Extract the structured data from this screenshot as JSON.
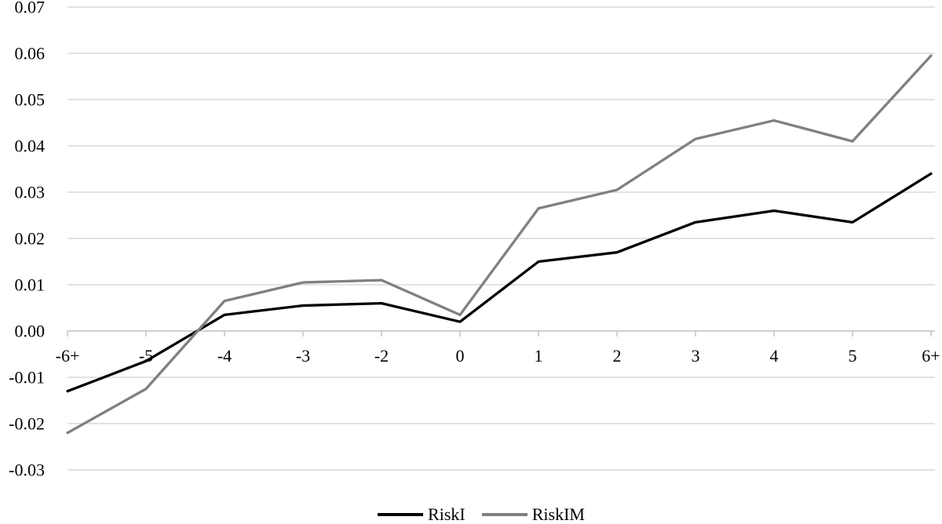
{
  "chart_data": {
    "type": "line",
    "title": "",
    "xlabel": "",
    "ylabel": "",
    "categories": [
      "-6+",
      "-5",
      "-4",
      "-3",
      "-2",
      "0",
      "1",
      "2",
      "3",
      "4",
      "5",
      "6+"
    ],
    "series": [
      {
        "name": "RiskI",
        "color": "#000000",
        "values": [
          -0.013,
          -0.0065,
          0.0035,
          0.0055,
          0.006,
          0.002,
          0.015,
          0.017,
          0.0235,
          0.026,
          0.0235,
          0.034
        ]
      },
      {
        "name": "RiskIM",
        "color": "#808080",
        "values": [
          -0.022,
          -0.0125,
          0.0065,
          0.0105,
          0.011,
          0.0035,
          0.0265,
          0.0305,
          0.0415,
          0.0455,
          0.041,
          0.0595
        ]
      }
    ],
    "ylim": [
      -0.03,
      0.07
    ],
    "y_tick_step": 0.01,
    "y_tick_labels": [
      "0.07",
      "0.06",
      "0.05",
      "0.04",
      "0.03",
      "0.02",
      "0.01",
      "0.00",
      "-0.01",
      "-0.02",
      "-0.03"
    ],
    "grid": true,
    "legend_position": "bottom-center",
    "colors": {
      "gridline": "#d9d9d9",
      "axis": "#bfbfbf",
      "text": "#000000",
      "background": "#ffffff"
    }
  }
}
